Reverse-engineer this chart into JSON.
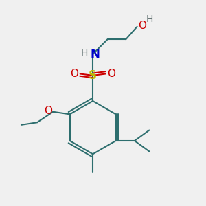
{
  "bg_color": "#f0f0f0",
  "bond_color": "#2d6e6e",
  "bond_width": 1.5,
  "atom_colors": {
    "C": "#000000",
    "H": "#607070",
    "N": "#0000cc",
    "O": "#cc0000",
    "S": "#bbbb00"
  },
  "figsize": [
    3.0,
    3.0
  ],
  "dpi": 100
}
